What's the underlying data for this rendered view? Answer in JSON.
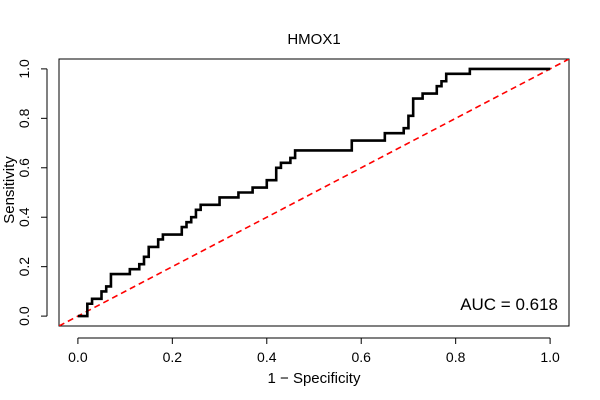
{
  "chart_data": {
    "type": "line",
    "title": "HMOX1",
    "xlabel": "1 − Specificity",
    "ylabel": "Sensitivity",
    "xlim": [
      -0.04,
      1.04
    ],
    "ylim": [
      -0.04,
      1.04
    ],
    "x_ticks": [
      "0.0",
      "0.2",
      "0.4",
      "0.6",
      "0.8",
      "1.0"
    ],
    "y_ticks": [
      "0.0",
      "0.2",
      "0.4",
      "0.6",
      "0.8",
      "1.0"
    ],
    "grid": false,
    "legend": "none",
    "annotation": "AUC = 0.618",
    "series": [
      {
        "color": "#000000",
        "style": "step",
        "x": [
          0.0,
          0.02,
          0.02,
          0.03,
          0.03,
          0.05,
          0.05,
          0.06,
          0.06,
          0.07,
          0.07,
          0.08,
          0.08,
          0.11,
          0.11,
          0.13,
          0.13,
          0.14,
          0.14,
          0.15,
          0.15,
          0.17,
          0.17,
          0.18,
          0.18,
          0.19,
          0.19,
          0.22,
          0.22,
          0.23,
          0.23,
          0.24,
          0.24,
          0.25,
          0.25,
          0.26,
          0.26,
          0.3,
          0.3,
          0.34,
          0.34,
          0.37,
          0.37,
          0.4,
          0.4,
          0.42,
          0.42,
          0.43,
          0.43,
          0.45,
          0.45,
          0.46,
          0.46,
          0.47,
          0.47,
          0.58,
          0.58,
          0.64,
          0.64,
          0.65,
          0.65,
          0.69,
          0.69,
          0.7,
          0.7,
          0.71,
          0.71,
          0.73,
          0.73,
          0.76,
          0.76,
          0.77,
          0.77,
          0.78,
          0.78,
          0.83,
          0.83,
          1.0
        ],
        "y": [
          0.0,
          0.0,
          0.05,
          0.05,
          0.07,
          0.07,
          0.1,
          0.1,
          0.12,
          0.12,
          0.17,
          0.17,
          0.17,
          0.17,
          0.19,
          0.19,
          0.21,
          0.21,
          0.24,
          0.24,
          0.28,
          0.28,
          0.31,
          0.31,
          0.33,
          0.33,
          0.33,
          0.33,
          0.36,
          0.36,
          0.38,
          0.38,
          0.4,
          0.4,
          0.43,
          0.43,
          0.45,
          0.45,
          0.48,
          0.48,
          0.5,
          0.5,
          0.52,
          0.52,
          0.55,
          0.55,
          0.6,
          0.6,
          0.62,
          0.62,
          0.64,
          0.64,
          0.67,
          0.67,
          0.67,
          0.67,
          0.71,
          0.71,
          0.71,
          0.71,
          0.74,
          0.74,
          0.76,
          0.76,
          0.81,
          0.81,
          0.88,
          0.88,
          0.9,
          0.9,
          0.93,
          0.93,
          0.95,
          0.95,
          0.98,
          0.98,
          1.0,
          1.0
        ]
      },
      {
        "color": "#ff0000",
        "style": "dashed",
        "x": [
          -0.04,
          1.04
        ],
        "y": [
          -0.04,
          1.04
        ]
      }
    ]
  }
}
